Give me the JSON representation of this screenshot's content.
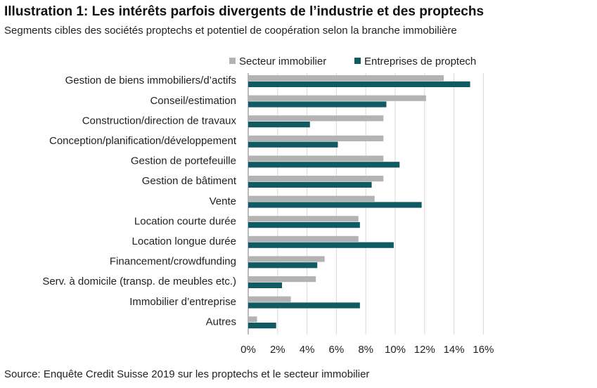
{
  "header": {
    "title": "Illustration 1: Les intérêts parfois divergents de l’industrie et des proptechs",
    "subtitle": "Segments cibles des sociétés proptechs et potentiel de coopération selon la branche immobilière"
  },
  "footer": {
    "source": "Source: Enquête Credit Suisse 2019 sur les proptechs et le secteur immobilier"
  },
  "chart_data": {
    "type": "bar",
    "orientation": "horizontal",
    "title": "Illustration 1: Les intérêts parfois divergents de l’industrie et des proptechs",
    "subtitle": "Segments cibles des sociétés proptechs et potentiel de coopération selon la branche immobilière",
    "categories": [
      "Gestion de biens immobiliers/d’actifs",
      "Conseil/estimation",
      "Construction/direction de travaux",
      "Conception/planification/développement",
      "Gestion de portefeuille",
      "Gestion de bâtiment",
      "Vente",
      "Location courte durée",
      "Location longue durée",
      "Financement/crowdfunding",
      "Serv. à domicile (transp. de meubles etc.)",
      "Immobilier d’entreprise",
      "Autres"
    ],
    "series": [
      {
        "name": "Secteur immobilier",
        "color": "#b3b3b3",
        "values": [
          13.3,
          12.1,
          9.2,
          9.2,
          9.2,
          9.2,
          8.6,
          7.5,
          7.5,
          5.2,
          4.6,
          2.9,
          0.6
        ]
      },
      {
        "name": "Entreprises de proptech",
        "color": "#0f5a63",
        "values": [
          15.1,
          9.4,
          4.2,
          6.1,
          10.3,
          8.4,
          11.8,
          7.6,
          9.9,
          4.7,
          2.3,
          7.6,
          1.9
        ]
      }
    ],
    "xlim": [
      0,
      16
    ],
    "xticks": [
      "0%",
      "2%",
      "4%",
      "6%",
      "8%",
      "10%",
      "12%",
      "14%",
      "16%"
    ],
    "xtick_values": [
      0,
      2,
      4,
      6,
      8,
      10,
      12,
      14,
      16
    ],
    "grid": true,
    "legend": "top"
  }
}
